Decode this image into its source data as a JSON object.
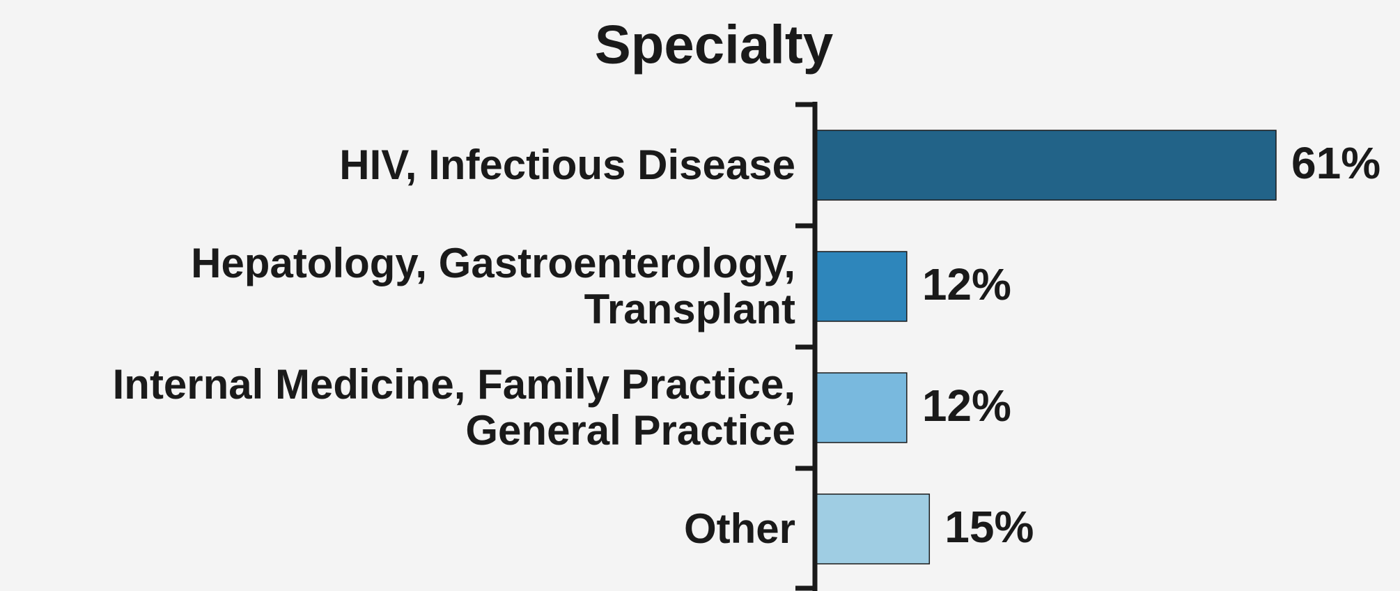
{
  "chart_data": {
    "type": "hbar",
    "title": "Specialty",
    "categories": [
      [
        "HIV, Infectious Disease"
      ],
      [
        "Hepatology, Gastroenterology,",
        "Transplant"
      ],
      [
        "Internal Medicine, Family Practice,",
        "General Practice"
      ],
      [
        "Other"
      ]
    ],
    "values": [
      61,
      12,
      12,
      15
    ],
    "value_labels": [
      "61%",
      "12%",
      "12%",
      "15%"
    ],
    "colors": [
      "#226388",
      "#2e86bb",
      "#79b9de",
      "#9fcde3"
    ]
  }
}
